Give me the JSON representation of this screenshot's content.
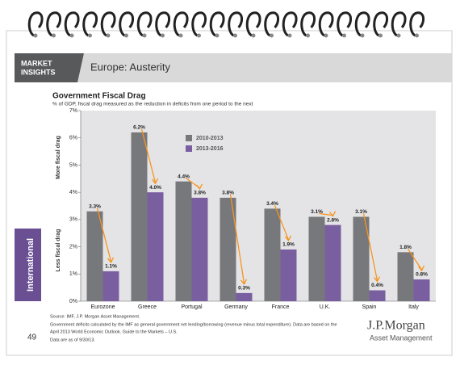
{
  "header": {
    "brand": [
      "MARKET",
      "INSIGHTS"
    ],
    "title": "Europe: Austerity"
  },
  "sidebar": "International",
  "chart_data": {
    "type": "bar",
    "title": "Government Fiscal Drag",
    "subtitle": "% of GDP, fiscal drag measured as the reduction in deficits from one period to the next",
    "annotations": [
      "More fiscal drag",
      "Less fiscal drag"
    ],
    "categories": [
      "Eurozone",
      "Greece",
      "Portugal",
      "Germany",
      "France",
      "U.K.",
      "Spain",
      "Italy"
    ],
    "series": [
      {
        "name": "2010-2013",
        "color": "#77787b",
        "values": [
          3.3,
          6.2,
          4.4,
          3.8,
          3.4,
          3.1,
          3.1,
          1.8
        ],
        "value_labels": [
          "3.3%",
          "6.2%",
          "4.4%",
          "3.8%",
          "3.4%",
          "3.1%",
          "3.1%",
          "1.8%"
        ]
      },
      {
        "name": "2013-2016",
        "color": "#7a5fa0",
        "values": [
          1.1,
          4.0,
          3.8,
          0.3,
          1.9,
          2.8,
          0.4,
          0.8
        ],
        "value_labels": [
          "1.1%",
          "4.0%",
          "3.8%",
          "0.3%",
          "1.9%",
          "2.8%",
          "0.4%",
          "0.8%"
        ]
      }
    ],
    "ylim": [
      0,
      7
    ],
    "yticks": [
      {
        "value": 0,
        "label": "0%"
      },
      {
        "value": 1,
        "label": "1%"
      },
      {
        "value": 2,
        "label": "2%"
      },
      {
        "value": 3,
        "label": "3%"
      },
      {
        "value": 4,
        "label": "4%"
      },
      {
        "value": 5,
        "label": "5%"
      },
      {
        "value": 6,
        "label": "6%"
      },
      {
        "value": 7,
        "label": "7%"
      }
    ],
    "arrow_color": "#f7941d"
  },
  "footer": {
    "notes": [
      "Source: IMF, J.P. Morgan Asset Management.",
      "Government deficits calculated by the IMF as general government net lending/borrowing (revenue minus total expenditure). Data are based on the",
      "April 2013 World Economic Outlook. Guide to the Markets – U.S.",
      "Data are as of 9/30/13."
    ],
    "page": "49",
    "logo": "J.P.Morgan",
    "logo_sub": "Asset Management"
  }
}
